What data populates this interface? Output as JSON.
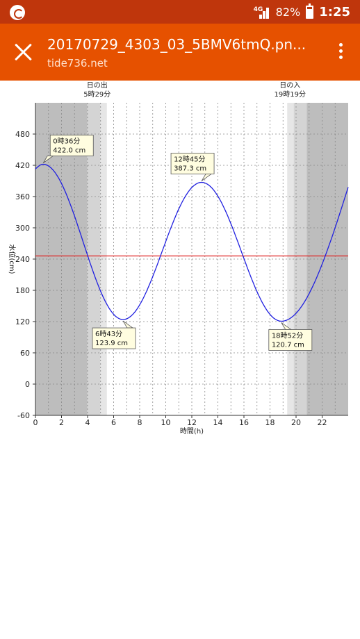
{
  "status_bar": {
    "network": "4G",
    "battery": "82%",
    "time": "1:25"
  },
  "app_bar": {
    "title": "20170729_4303_03_5BMV6tmQ.pn...",
    "subtitle": "tide736.net"
  },
  "chart_data": {
    "type": "line",
    "xlabel": "時間(h)",
    "ylabel": "水位(cm)",
    "xlim": [
      0,
      24
    ],
    "ylim": [
      -60,
      540
    ],
    "x_ticks": [
      0,
      2,
      4,
      6,
      8,
      10,
      12,
      14,
      16,
      18,
      20,
      22
    ],
    "y_ticks": [
      -60,
      0,
      60,
      120,
      180,
      240,
      300,
      360,
      420,
      480
    ],
    "series": [
      {
        "color": "#2020e0",
        "x": [
          0,
          0.6,
          2,
          4,
          6.72,
          8,
          10,
          12.75,
          14,
          16,
          18.87,
          20,
          22,
          24
        ],
        "y": [
          413,
          422,
          380,
          258,
          123.9,
          150,
          270,
          387.3,
          355,
          235,
          120.7,
          140,
          260,
          378
        ]
      }
    ],
    "reference_line": {
      "y": 246,
      "color": "#e02020"
    },
    "sunrise": {
      "label": "日の出",
      "time": "5時29分",
      "hour": 5.48
    },
    "sunset": {
      "label": "日の入",
      "time": "19時19分",
      "hour": 19.32
    },
    "annotations": [
      {
        "time": "0時36分",
        "level": "422.0 cm",
        "x": 0.6,
        "y": 422.0
      },
      {
        "time": "6時43分",
        "level": "123.9 cm",
        "x": 6.72,
        "y": 123.9
      },
      {
        "time": "12時45分",
        "level": "387.3 cm",
        "x": 12.75,
        "y": 387.3
      },
      {
        "time": "18時52分",
        "level": "120.7 cm",
        "x": 18.87,
        "y": 120.7
      }
    ]
  }
}
